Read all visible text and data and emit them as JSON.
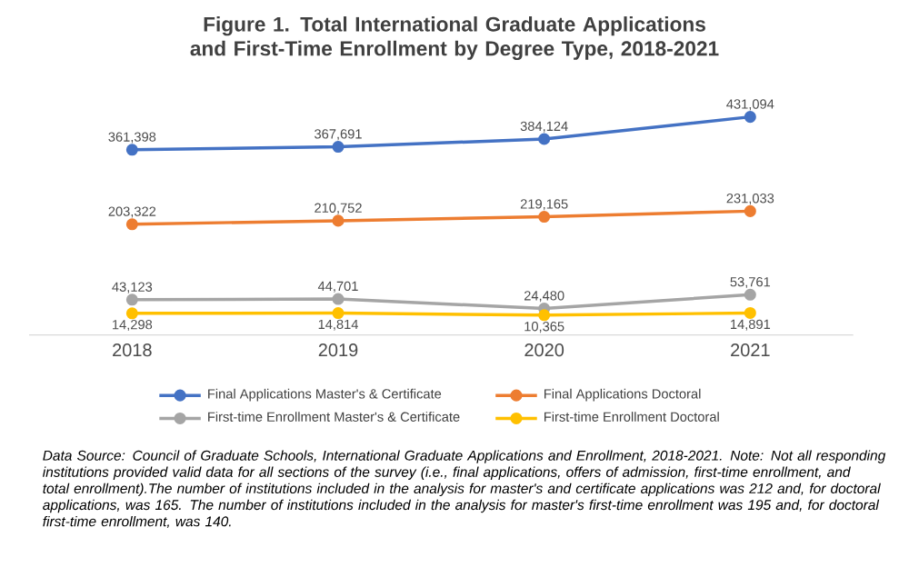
{
  "chart_data": {
    "type": "line",
    "title": "Figure 1. Total International Graduate Applications and First-Time Enrollment by Degree Type, 2018-2021",
    "categories": [
      "2018",
      "2019",
      "2020",
      "2021"
    ],
    "series": [
      {
        "name": "Final Applications  Master's & Certificate",
        "color": "#4472c4",
        "values": [
          361398,
          367691,
          384124,
          431094
        ],
        "value_labels": [
          "361,398",
          "367,691",
          "384,124",
          "431,094"
        ]
      },
      {
        "name": "Final Applications  Doctoral",
        "color": "#ed7d31",
        "values": [
          203322,
          210752,
          219165,
          231033
        ],
        "value_labels": [
          "203,322",
          "210,752",
          "219,165",
          "231,033"
        ]
      },
      {
        "name": "First-time Enrollment  Master's & Certificate",
        "color": "#a5a5a5",
        "values": [
          43123,
          44701,
          24480,
          53761
        ],
        "value_labels": [
          "43,123",
          "44,701",
          "24,480",
          "53,761"
        ]
      },
      {
        "name": "First-time Enrollment  Doctoral",
        "color": "#ffc000",
        "values": [
          14298,
          14814,
          10365,
          14891
        ],
        "value_labels": [
          "14,298",
          "14,814",
          "10,365",
          "14,891"
        ]
      }
    ],
    "marker": "circle",
    "line_style": "solid",
    "grid": false,
    "legend": "bottom",
    "tick_labels": "x",
    "annotations": [
      "Data Source: Council of Graduate Schools, International Graduate Applications and Enrollment, 2018-2021. Note: Not all responding institutions provided valid data for all sections of the survey (i.e., final applications, offers of admission, first-time enrollment, and total enrollment).The number of institutions included in the analysis for master's and certificate applications was 212 and, for doctoral applications, was 165. The number of institutions included in the analysis for master's first-time enrollment was 195 and, for doctoral first-time enrollment, was 140."
    ]
  }
}
